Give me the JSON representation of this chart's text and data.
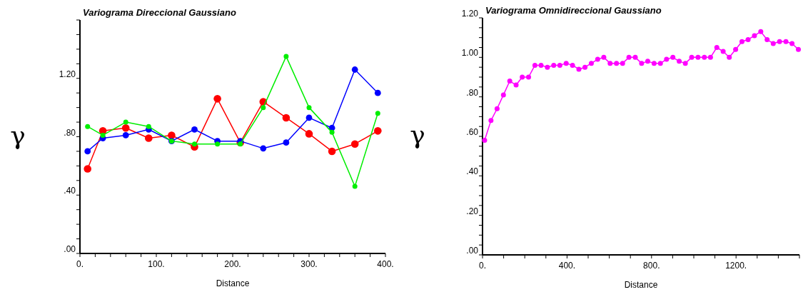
{
  "chart_data": [
    {
      "type": "line",
      "title": "Variograma Direccional Gaussiano",
      "xlabel": "Distance",
      "ylabel": "γ",
      "marker": "circle",
      "grid": false,
      "xlim": [
        0,
        400
      ],
      "ylim": [
        0,
        1.6
      ],
      "xticks": [
        {
          "value": 0,
          "label": "0."
        },
        {
          "value": 20,
          "label": null
        },
        {
          "value": 40,
          "label": null
        },
        {
          "value": 60,
          "label": null
        },
        {
          "value": 80,
          "label": null
        },
        {
          "value": 100,
          "label": "100."
        },
        {
          "value": 120,
          "label": null
        },
        {
          "value": 140,
          "label": null
        },
        {
          "value": 160,
          "label": null
        },
        {
          "value": 180,
          "label": null
        },
        {
          "value": 200,
          "label": "200."
        },
        {
          "value": 220,
          "label": null
        },
        {
          "value": 240,
          "label": null
        },
        {
          "value": 260,
          "label": null
        },
        {
          "value": 280,
          "label": null
        },
        {
          "value": 300,
          "label": "300."
        },
        {
          "value": 320,
          "label": null
        },
        {
          "value": 340,
          "label": null
        },
        {
          "value": 360,
          "label": null
        },
        {
          "value": 380,
          "label": null
        },
        {
          "value": 400,
          "label": "400."
        }
      ],
      "yticks": [
        {
          "value": 0,
          "label": ".00"
        },
        {
          "value": 0.1,
          "label": null
        },
        {
          "value": 0.2,
          "label": null
        },
        {
          "value": 0.3,
          "label": null
        },
        {
          "value": 0.4,
          "label": ".40"
        },
        {
          "value": 0.5,
          "label": null
        },
        {
          "value": 0.6,
          "label": null
        },
        {
          "value": 0.7,
          "label": null
        },
        {
          "value": 0.8,
          "label": ".80"
        },
        {
          "value": 0.9,
          "label": null
        },
        {
          "value": 1.0,
          "label": null
        },
        {
          "value": 1.1,
          "label": null
        },
        {
          "value": 1.2,
          "label": "1.20"
        },
        {
          "value": 1.3,
          "label": null
        },
        {
          "value": 1.4,
          "label": null
        },
        {
          "value": 1.5,
          "label": null
        },
        {
          "value": 1.6,
          "label": null
        }
      ],
      "x": [
        10,
        30,
        60,
        90,
        120,
        150,
        180,
        210,
        240,
        270,
        300,
        330,
        360,
        390
      ],
      "series": [
        {
          "color": "#ff0000",
          "values": [
            0.58,
            0.84,
            0.86,
            0.79,
            0.81,
            0.73,
            1.06,
            0.76,
            1.04,
            0.93,
            0.82,
            0.7,
            0.75,
            0.84
          ]
        },
        {
          "color": "#0000ff",
          "values": [
            0.7,
            0.79,
            0.81,
            0.85,
            0.77,
            0.85,
            0.77,
            0.77,
            0.72,
            0.76,
            0.93,
            0.86,
            1.26,
            1.1
          ]
        },
        {
          "color": "#00ee00",
          "values": [
            0.87,
            0.81,
            0.9,
            0.87,
            0.77,
            0.75,
            0.75,
            0.75,
            1.0,
            1.35,
            1.0,
            0.83,
            0.46,
            0.96
          ]
        }
      ]
    },
    {
      "type": "line",
      "title": "Variograma Omnidireccional Gaussiano",
      "xlabel": "Distance",
      "ylabel": "γ",
      "marker": "circle",
      "grid": false,
      "xlim": [
        0,
        1500
      ],
      "ylim": [
        0,
        1.2
      ],
      "xticks": [
        {
          "value": 0,
          "label": "0."
        },
        {
          "value": 100,
          "label": null
        },
        {
          "value": 200,
          "label": null
        },
        {
          "value": 300,
          "label": null
        },
        {
          "value": 400,
          "label": "400."
        },
        {
          "value": 500,
          "label": null
        },
        {
          "value": 600,
          "label": null
        },
        {
          "value": 700,
          "label": null
        },
        {
          "value": 800,
          "label": "800."
        },
        {
          "value": 900,
          "label": null
        },
        {
          "value": 1000,
          "label": null
        },
        {
          "value": 1100,
          "label": null
        },
        {
          "value": 1200,
          "label": "1200."
        },
        {
          "value": 1300,
          "label": null
        },
        {
          "value": 1400,
          "label": null
        },
        {
          "value": 1500,
          "label": null
        }
      ],
      "yticks": [
        {
          "value": 0,
          "label": ".00"
        },
        {
          "value": 0.05,
          "label": null
        },
        {
          "value": 0.1,
          "label": null
        },
        {
          "value": 0.15,
          "label": null
        },
        {
          "value": 0.2,
          "label": ".20"
        },
        {
          "value": 0.25,
          "label": null
        },
        {
          "value": 0.3,
          "label": null
        },
        {
          "value": 0.35,
          "label": null
        },
        {
          "value": 0.4,
          "label": ".40"
        },
        {
          "value": 0.45,
          "label": null
        },
        {
          "value": 0.5,
          "label": null
        },
        {
          "value": 0.55,
          "label": null
        },
        {
          "value": 0.6,
          "label": ".60"
        },
        {
          "value": 0.65,
          "label": null
        },
        {
          "value": 0.7,
          "label": null
        },
        {
          "value": 0.75,
          "label": null
        },
        {
          "value": 0.8,
          "label": ".80"
        },
        {
          "value": 0.85,
          "label": null
        },
        {
          "value": 0.9,
          "label": null
        },
        {
          "value": 0.95,
          "label": null
        },
        {
          "value": 1.0,
          "label": "1.00"
        },
        {
          "value": 1.05,
          "label": null
        },
        {
          "value": 1.1,
          "label": null
        },
        {
          "value": 1.15,
          "label": null
        },
        {
          "value": 1.2,
          "label": "1.20"
        }
      ],
      "x": [
        10,
        40,
        69,
        99,
        129,
        159,
        188,
        218,
        248,
        277,
        307,
        337,
        366,
        396,
        426,
        456,
        485,
        515,
        545,
        574,
        604,
        634,
        663,
        693,
        723,
        753,
        782,
        812,
        842,
        871,
        901,
        931,
        960,
        990,
        1020,
        1050,
        1079,
        1109,
        1139,
        1168,
        1198,
        1228,
        1257,
        1287,
        1317,
        1347,
        1376,
        1406,
        1436,
        1465,
        1495
      ],
      "series": [
        {
          "color": "#ff00ff",
          "values": [
            0.58,
            0.68,
            0.74,
            0.81,
            0.88,
            0.86,
            0.9,
            0.9,
            0.96,
            0.96,
            0.95,
            0.96,
            0.96,
            0.97,
            0.96,
            0.94,
            0.95,
            0.97,
            0.99,
            1.0,
            0.97,
            0.97,
            0.97,
            1.0,
            1.0,
            0.97,
            0.98,
            0.97,
            0.97,
            0.99,
            1.0,
            0.98,
            0.97,
            1.0,
            1.0,
            1.0,
            1.0,
            1.05,
            1.03,
            1.0,
            1.04,
            1.08,
            1.09,
            1.11,
            1.13,
            1.09,
            1.07,
            1.08,
            1.08,
            1.07,
            1.04
          ]
        }
      ]
    }
  ]
}
